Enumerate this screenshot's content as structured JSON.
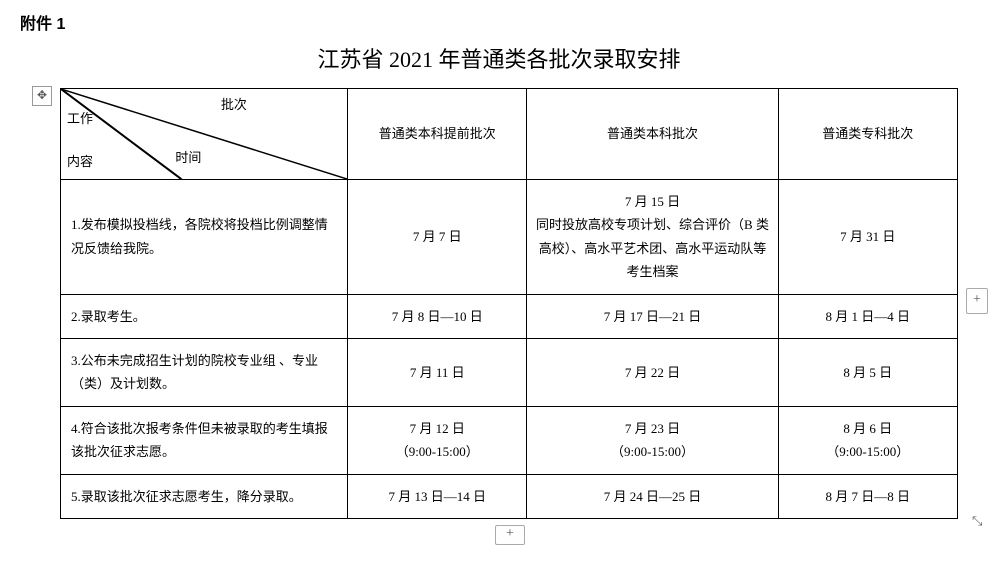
{
  "attachment_label": "附件 1",
  "title": "江苏省 2021 年普通类各批次录取安排",
  "header": {
    "diag_top": "批次",
    "diag_mid": "时间",
    "diag_left_line1": "工作",
    "diag_left_line2": "内容",
    "col1": "普通类本科提前批次",
    "col2": "普通类本科批次",
    "col3": "普通类专科批次"
  },
  "rows": [
    {
      "label": "1.发布模拟投档线，各院校将投档比例调整情况反馈给我院。",
      "c1": "7 月 7 日",
      "c2": "7 月 15 日\n同时投放高校专项计划、综合评价（B 类高校）、高水平艺术团、高水平运动队等考生档案",
      "c3": "7 月 31 日"
    },
    {
      "label": "2.录取考生。",
      "c1": "7 月 8 日—10 日",
      "c2": "7 月 17 日—21 日",
      "c3": "8 月 1 日—4 日"
    },
    {
      "label": "3.公布未完成招生计划的院校专业组 、专业（类）及计划数。",
      "c1": "7 月 11 日",
      "c2": "7 月 22 日",
      "c3": "8 月 5 日"
    },
    {
      "label": "4.符合该批次报考条件但未被录取的考生填报该批次征求志愿。",
      "c1": "7 月 12 日\n（9:00-15:00）",
      "c2": "7 月 23 日\n（9:00-15:00）",
      "c3": "8 月 6 日\n（9:00-15:00）"
    },
    {
      "label": "5.录取该批次征求志愿考生，降分录取。",
      "c1": "7 月 13 日—14 日",
      "c2": "7 月 24 日—25 日",
      "c3": "8 月 7 日—8 日"
    }
  ],
  "handles": {
    "move": "✥",
    "plus": "+",
    "resize": "⤡"
  }
}
